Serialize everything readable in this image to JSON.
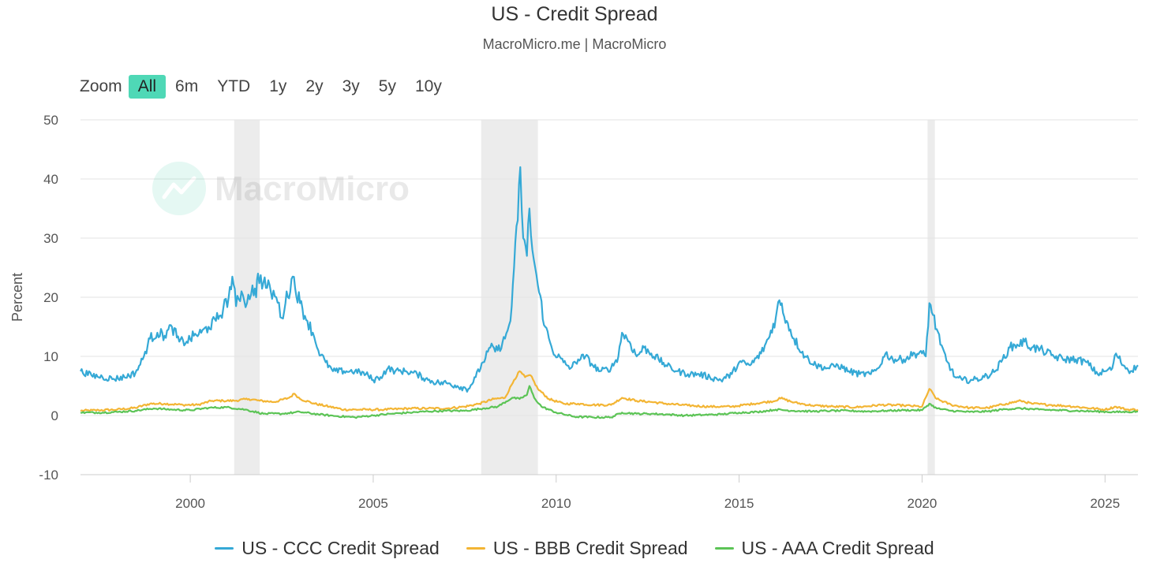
{
  "chart_data": {
    "type": "line",
    "title": "US - Credit Spread",
    "subtitle": "MacroMicro.me | MacroMicro",
    "watermark": "MacroMicro",
    "ylabel": "Percent",
    "xlabel": "",
    "xlim": [
      1997.0,
      2025.9
    ],
    "ylim": [
      -10,
      50
    ],
    "yticks": [
      -10,
      0,
      10,
      20,
      30,
      40,
      50
    ],
    "xticks": [
      2000,
      2005,
      2010,
      2015,
      2020,
      2025
    ],
    "grid": true,
    "legend_position": "bottom",
    "recessions": [
      [
        2001.2,
        2001.9
      ],
      [
        2007.95,
        2009.5
      ],
      [
        2020.15,
        2020.35
      ]
    ],
    "series": [
      {
        "name": "US - CCC Credit Spread",
        "color": "#35a9d6",
        "points": [
          [
            1997.0,
            7.5
          ],
          [
            1997.3,
            6.8
          ],
          [
            1997.6,
            6.5
          ],
          [
            1997.9,
            6.2
          ],
          [
            1998.2,
            6.5
          ],
          [
            1998.5,
            7.2
          ],
          [
            1998.7,
            9.5
          ],
          [
            1998.9,
            13.0
          ],
          [
            1999.1,
            14.0
          ],
          [
            1999.3,
            13.5
          ],
          [
            1999.5,
            15.0
          ],
          [
            1999.7,
            12.5
          ],
          [
            1999.9,
            12.5
          ],
          [
            2000.1,
            13.5
          ],
          [
            2000.3,
            14.0
          ],
          [
            2000.5,
            15.0
          ],
          [
            2000.7,
            16.0
          ],
          [
            2000.9,
            18.0
          ],
          [
            2001.05,
            20.0
          ],
          [
            2001.15,
            23.5
          ],
          [
            2001.25,
            18.5
          ],
          [
            2001.4,
            21.0
          ],
          [
            2001.55,
            19.0
          ],
          [
            2001.7,
            22.0
          ],
          [
            2001.8,
            20.0
          ],
          [
            2001.85,
            24.0
          ],
          [
            2002.0,
            22.5
          ],
          [
            2002.2,
            21.0
          ],
          [
            2002.35,
            20.0
          ],
          [
            2002.5,
            16.5
          ],
          [
            2002.6,
            19.0
          ],
          [
            2002.8,
            23.5
          ],
          [
            2003.0,
            19.0
          ],
          [
            2003.2,
            16.0
          ],
          [
            2003.35,
            14.0
          ],
          [
            2003.5,
            11.0
          ],
          [
            2003.7,
            9.0
          ],
          [
            2003.9,
            7.5
          ],
          [
            2004.2,
            7.5
          ],
          [
            2004.5,
            7.5
          ],
          [
            2004.8,
            7.0
          ],
          [
            2005.0,
            6.0
          ],
          [
            2005.2,
            6.5
          ],
          [
            2005.4,
            8.0
          ],
          [
            2005.6,
            7.5
          ],
          [
            2005.9,
            7.5
          ],
          [
            2006.2,
            7.0
          ],
          [
            2006.5,
            6.0
          ],
          [
            2006.8,
            5.5
          ],
          [
            2007.0,
            5.5
          ],
          [
            2007.3,
            5.0
          ],
          [
            2007.6,
            4.5
          ],
          [
            2007.8,
            6.5
          ],
          [
            2008.0,
            9.0
          ],
          [
            2008.2,
            11.5
          ],
          [
            2008.4,
            11.0
          ],
          [
            2008.6,
            13.0
          ],
          [
            2008.75,
            16.0
          ],
          [
            2008.85,
            25.0
          ],
          [
            2008.95,
            33.0
          ],
          [
            2009.02,
            42.0
          ],
          [
            2009.1,
            30.0
          ],
          [
            2009.2,
            27.0
          ],
          [
            2009.27,
            35.0
          ],
          [
            2009.35,
            28.0
          ],
          [
            2009.5,
            22.0
          ],
          [
            2009.7,
            15.0
          ],
          [
            2009.9,
            11.0
          ],
          [
            2010.2,
            9.0
          ],
          [
            2010.4,
            8.0
          ],
          [
            2010.6,
            9.5
          ],
          [
            2010.8,
            10.0
          ],
          [
            2011.0,
            8.5
          ],
          [
            2011.2,
            7.5
          ],
          [
            2011.5,
            8.0
          ],
          [
            2011.7,
            10.0
          ],
          [
            2011.8,
            14.0
          ],
          [
            2012.0,
            12.5
          ],
          [
            2012.2,
            10.0
          ],
          [
            2012.4,
            11.5
          ],
          [
            2012.6,
            10.5
          ],
          [
            2012.8,
            9.5
          ],
          [
            2013.0,
            8.5
          ],
          [
            2013.3,
            7.5
          ],
          [
            2013.6,
            7.0
          ],
          [
            2013.9,
            7.0
          ],
          [
            2014.2,
            6.5
          ],
          [
            2014.5,
            6.0
          ],
          [
            2014.8,
            7.0
          ],
          [
            2015.0,
            9.0
          ],
          [
            2015.3,
            8.5
          ],
          [
            2015.6,
            10.5
          ],
          [
            2015.8,
            13.0
          ],
          [
            2016.0,
            16.5
          ],
          [
            2016.1,
            19.5
          ],
          [
            2016.3,
            16.0
          ],
          [
            2016.5,
            13.0
          ],
          [
            2016.8,
            10.0
          ],
          [
            2017.1,
            8.5
          ],
          [
            2017.4,
            8.0
          ],
          [
            2017.7,
            8.5
          ],
          [
            2018.0,
            7.5
          ],
          [
            2018.3,
            7.0
          ],
          [
            2018.6,
            7.0
          ],
          [
            2018.8,
            8.0
          ],
          [
            2019.0,
            10.5
          ],
          [
            2019.2,
            9.5
          ],
          [
            2019.5,
            9.5
          ],
          [
            2019.8,
            10.5
          ],
          [
            2020.0,
            10.5
          ],
          [
            2020.1,
            10.0
          ],
          [
            2020.2,
            19.0
          ],
          [
            2020.3,
            17.0
          ],
          [
            2020.5,
            12.0
          ],
          [
            2020.7,
            9.0
          ],
          [
            2020.9,
            6.5
          ],
          [
            2021.1,
            6.0
          ],
          [
            2021.4,
            6.0
          ],
          [
            2021.7,
            6.5
          ],
          [
            2022.0,
            7.5
          ],
          [
            2022.2,
            9.5
          ],
          [
            2022.4,
            11.5
          ],
          [
            2022.6,
            12.0
          ],
          [
            2022.8,
            12.5
          ],
          [
            2023.0,
            11.5
          ],
          [
            2023.3,
            11.0
          ],
          [
            2023.6,
            10.0
          ],
          [
            2023.9,
            9.5
          ],
          [
            2024.2,
            9.5
          ],
          [
            2024.5,
            9.0
          ],
          [
            2024.8,
            7.0
          ],
          [
            2025.0,
            7.5
          ],
          [
            2025.2,
            8.0
          ],
          [
            2025.3,
            10.5
          ],
          [
            2025.5,
            8.5
          ],
          [
            2025.7,
            7.5
          ],
          [
            2025.9,
            8.5
          ]
        ]
      },
      {
        "name": "US - BBB Credit Spread",
        "color": "#f3b534",
        "points": [
          [
            1997.0,
            0.8
          ],
          [
            1997.5,
            0.9
          ],
          [
            1998.0,
            1.0
          ],
          [
            1998.5,
            1.3
          ],
          [
            1998.9,
            2.0
          ],
          [
            1999.3,
            2.0
          ],
          [
            1999.8,
            1.8
          ],
          [
            2000.2,
            1.8
          ],
          [
            2000.6,
            2.5
          ],
          [
            2000.9,
            2.5
          ],
          [
            2001.2,
            2.5
          ],
          [
            2001.6,
            2.8
          ],
          [
            2001.9,
            2.5
          ],
          [
            2002.3,
            2.3
          ],
          [
            2002.7,
            3.0
          ],
          [
            2002.85,
            3.7
          ],
          [
            2003.0,
            2.8
          ],
          [
            2003.4,
            2.0
          ],
          [
            2003.8,
            1.5
          ],
          [
            2004.2,
            1.0
          ],
          [
            2004.8,
            1.0
          ],
          [
            2005.3,
            1.0
          ],
          [
            2006.0,
            1.2
          ],
          [
            2006.5,
            1.2
          ],
          [
            2007.0,
            1.2
          ],
          [
            2007.5,
            1.5
          ],
          [
            2007.9,
            2.0
          ],
          [
            2008.3,
            2.8
          ],
          [
            2008.6,
            3.0
          ],
          [
            2008.85,
            6.0
          ],
          [
            2009.0,
            7.5
          ],
          [
            2009.15,
            6.5
          ],
          [
            2009.3,
            6.8
          ],
          [
            2009.5,
            4.5
          ],
          [
            2009.8,
            2.8
          ],
          [
            2010.2,
            2.0
          ],
          [
            2010.6,
            2.0
          ],
          [
            2011.0,
            1.8
          ],
          [
            2011.5,
            1.8
          ],
          [
            2011.8,
            3.0
          ],
          [
            2012.2,
            2.5
          ],
          [
            2012.6,
            2.3
          ],
          [
            2013.0,
            2.0
          ],
          [
            2013.6,
            1.7
          ],
          [
            2014.2,
            1.5
          ],
          [
            2014.8,
            1.5
          ],
          [
            2015.4,
            2.0
          ],
          [
            2016.0,
            2.5
          ],
          [
            2016.1,
            3.0
          ],
          [
            2016.5,
            2.2
          ],
          [
            2017.0,
            1.7
          ],
          [
            2017.6,
            1.5
          ],
          [
            2018.2,
            1.4
          ],
          [
            2018.9,
            1.8
          ],
          [
            2019.5,
            1.7
          ],
          [
            2020.0,
            1.5
          ],
          [
            2020.2,
            4.5
          ],
          [
            2020.4,
            2.8
          ],
          [
            2020.8,
            1.8
          ],
          [
            2021.3,
            1.3
          ],
          [
            2021.8,
            1.3
          ],
          [
            2022.3,
            2.0
          ],
          [
            2022.7,
            2.5
          ],
          [
            2023.0,
            2.0
          ],
          [
            2023.5,
            1.8
          ],
          [
            2024.0,
            1.6
          ],
          [
            2024.5,
            1.3
          ],
          [
            2025.0,
            1.0
          ],
          [
            2025.3,
            1.5
          ],
          [
            2025.6,
            1.0
          ],
          [
            2025.9,
            1.0
          ]
        ]
      },
      {
        "name": "US - AAA Credit Spread",
        "color": "#5cc456",
        "points": [
          [
            1997.0,
            0.5
          ],
          [
            1997.5,
            0.5
          ],
          [
            1998.0,
            0.6
          ],
          [
            1998.5,
            0.8
          ],
          [
            1999.0,
            1.2
          ],
          [
            1999.5,
            1.0
          ],
          [
            2000.0,
            0.9
          ],
          [
            2000.5,
            1.3
          ],
          [
            2001.0,
            1.4
          ],
          [
            2001.5,
            1.0
          ],
          [
            2002.0,
            0.3
          ],
          [
            2002.5,
            0.3
          ],
          [
            2003.0,
            0.6
          ],
          [
            2003.5,
            0.2
          ],
          [
            2004.0,
            -0.1
          ],
          [
            2004.5,
            -0.3
          ],
          [
            2005.0,
            0.0
          ],
          [
            2005.5,
            0.3
          ],
          [
            2006.0,
            0.5
          ],
          [
            2006.5,
            0.7
          ],
          [
            2007.0,
            0.8
          ],
          [
            2007.5,
            0.8
          ],
          [
            2008.0,
            1.2
          ],
          [
            2008.4,
            1.5
          ],
          [
            2008.8,
            3.0
          ],
          [
            2009.0,
            2.8
          ],
          [
            2009.2,
            3.5
          ],
          [
            2009.27,
            5.0
          ],
          [
            2009.4,
            3.0
          ],
          [
            2009.6,
            1.5
          ],
          [
            2010.0,
            0.5
          ],
          [
            2010.5,
            -0.2
          ],
          [
            2011.0,
            -0.3
          ],
          [
            2011.5,
            -0.3
          ],
          [
            2011.8,
            0.5
          ],
          [
            2012.2,
            0.3
          ],
          [
            2012.6,
            0.3
          ],
          [
            2013.0,
            0.2
          ],
          [
            2013.5,
            0.0
          ],
          [
            2014.0,
            0.1
          ],
          [
            2014.5,
            0.2
          ],
          [
            2015.0,
            0.5
          ],
          [
            2015.5,
            0.6
          ],
          [
            2016.0,
            1.0
          ],
          [
            2016.5,
            0.8
          ],
          [
            2017.0,
            0.7
          ],
          [
            2017.5,
            0.8
          ],
          [
            2018.0,
            0.8
          ],
          [
            2018.5,
            0.7
          ],
          [
            2019.0,
            0.8
          ],
          [
            2019.5,
            0.9
          ],
          [
            2020.0,
            0.9
          ],
          [
            2020.2,
            2.0
          ],
          [
            2020.4,
            1.2
          ],
          [
            2020.8,
            0.8
          ],
          [
            2021.3,
            0.6
          ],
          [
            2021.8,
            0.7
          ],
          [
            2022.3,
            1.1
          ],
          [
            2022.7,
            1.2
          ],
          [
            2023.2,
            1.0
          ],
          [
            2023.7,
            0.9
          ],
          [
            2024.2,
            0.8
          ],
          [
            2024.7,
            0.7
          ],
          [
            2025.2,
            0.6
          ],
          [
            2025.6,
            0.6
          ],
          [
            2025.9,
            0.7
          ]
        ]
      }
    ]
  },
  "zoom": {
    "label": "Zoom",
    "options": [
      "All",
      "6m",
      "YTD",
      "1y",
      "2y",
      "3y",
      "5y",
      "10y"
    ],
    "selected": "All"
  }
}
